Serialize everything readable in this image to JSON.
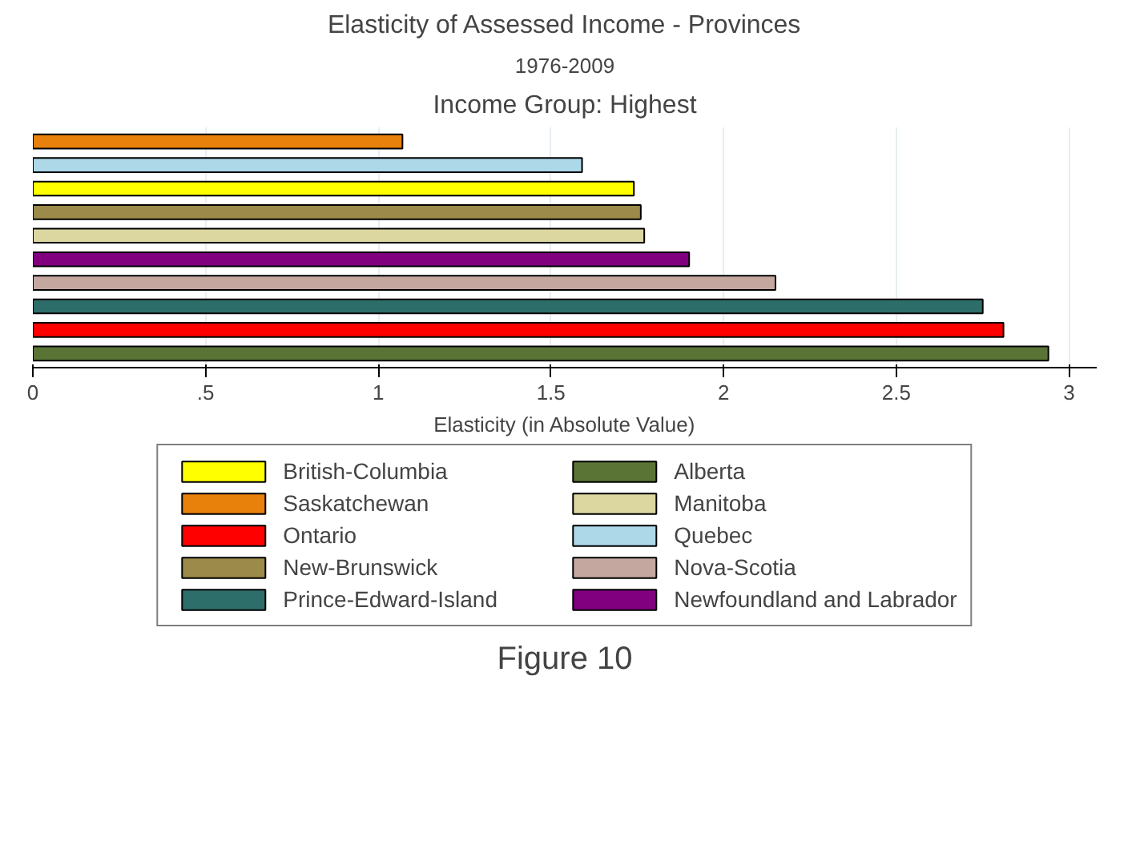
{
  "chart_data": {
    "type": "bar",
    "orientation": "horizontal",
    "title": "Elasticity of Assessed Income - Provinces",
    "subtitle": "1976-2009",
    "annotations": [
      "Income Group: Highest",
      "Figure 10"
    ],
    "xlabel": "Elasticity (in Absolute Value)",
    "categories": [
      null,
      null,
      null,
      null,
      null,
      null,
      null,
      null,
      null,
      null
    ],
    "series": [
      {
        "name": "British-Columbia",
        "color": "#ffff00",
        "values": [
          null,
          null,
          1.74,
          null,
          null,
          null,
          null,
          null,
          null,
          null
        ]
      },
      {
        "name": "Saskatchewan",
        "color": "#e8800c",
        "values": [
          1.07,
          null,
          null,
          null,
          null,
          null,
          null,
          null,
          null,
          null
        ]
      },
      {
        "name": "Ontario",
        "color": "#ff0000",
        "values": [
          null,
          null,
          null,
          null,
          null,
          null,
          null,
          null,
          2.81,
          null
        ]
      },
      {
        "name": "New-Brunswick",
        "color": "#9c8a4a",
        "values": [
          null,
          null,
          null,
          1.76,
          null,
          null,
          null,
          null,
          null,
          null
        ]
      },
      {
        "name": "Prince-Edward-Island",
        "color": "#2e6e6a",
        "values": [
          null,
          null,
          null,
          null,
          null,
          null,
          null,
          2.75,
          null,
          null
        ]
      },
      {
        "name": "Alberta",
        "color": "#5a7436",
        "values": [
          null,
          null,
          null,
          null,
          null,
          null,
          null,
          null,
          null,
          2.94
        ]
      },
      {
        "name": "Manitoba",
        "color": "#dcd6a0",
        "values": [
          null,
          null,
          null,
          null,
          1.77,
          null,
          null,
          null,
          null,
          null
        ]
      },
      {
        "name": "Quebec",
        "color": "#acd8e8",
        "values": [
          null,
          1.59,
          null,
          null,
          null,
          null,
          null,
          null,
          null,
          null
        ]
      },
      {
        "name": "Nova-Scotia",
        "color": "#c4a8a0",
        "values": [
          null,
          null,
          null,
          null,
          null,
          null,
          2.15,
          null,
          null,
          null
        ]
      },
      {
        "name": "Newfoundland and Labrador",
        "color": "#800080",
        "values": [
          null,
          null,
          null,
          null,
          null,
          1.9,
          null,
          null,
          null,
          null
        ]
      }
    ],
    "xlim": [
      0,
      3.08
    ],
    "xticks": [
      0,
      {
        "value": 0.5,
        "label": ".5"
      },
      1,
      1.5,
      2,
      2.5,
      3
    ],
    "grid": "x",
    "legend": "bottom",
    "tick_labels": "x"
  }
}
